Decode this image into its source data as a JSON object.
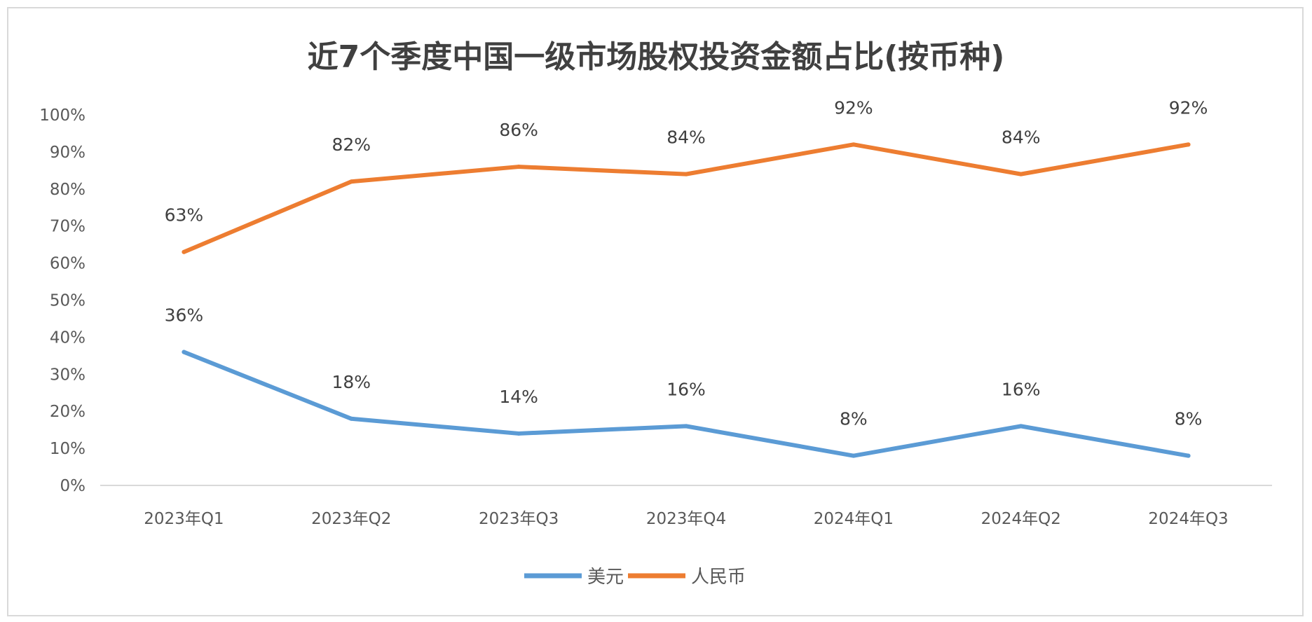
{
  "chart_data": {
    "type": "line",
    "title": "近7个季度中国一级市场股权投资金额占比(按币种)",
    "categories": [
      "2023年Q1",
      "2023年Q2",
      "2023年Q3",
      "2023年Q4",
      "2024年Q1",
      "2024年Q2",
      "2024年Q3"
    ],
    "series": [
      {
        "name": "美元",
        "color": "#5B9BD5",
        "values": [
          36,
          18,
          14,
          16,
          8,
          16,
          8
        ],
        "labels": [
          "36%",
          "18%",
          "14%",
          "16%",
          "8%",
          "16%",
          "8%"
        ]
      },
      {
        "name": "人民币",
        "color": "#ED7D31",
        "values": [
          63,
          82,
          86,
          84,
          92,
          84,
          92
        ],
        "labels": [
          "63%",
          "82%",
          "86%",
          "84%",
          "92%",
          "84%",
          "92%"
        ]
      }
    ],
    "ylim": [
      0,
      100
    ],
    "yticks": [
      "0%",
      "10%",
      "20%",
      "30%",
      "40%",
      "50%",
      "60%",
      "70%",
      "80%",
      "90%",
      "100%"
    ],
    "grid": false,
    "legend": "bottom",
    "xlabel": "",
    "ylabel": ""
  }
}
